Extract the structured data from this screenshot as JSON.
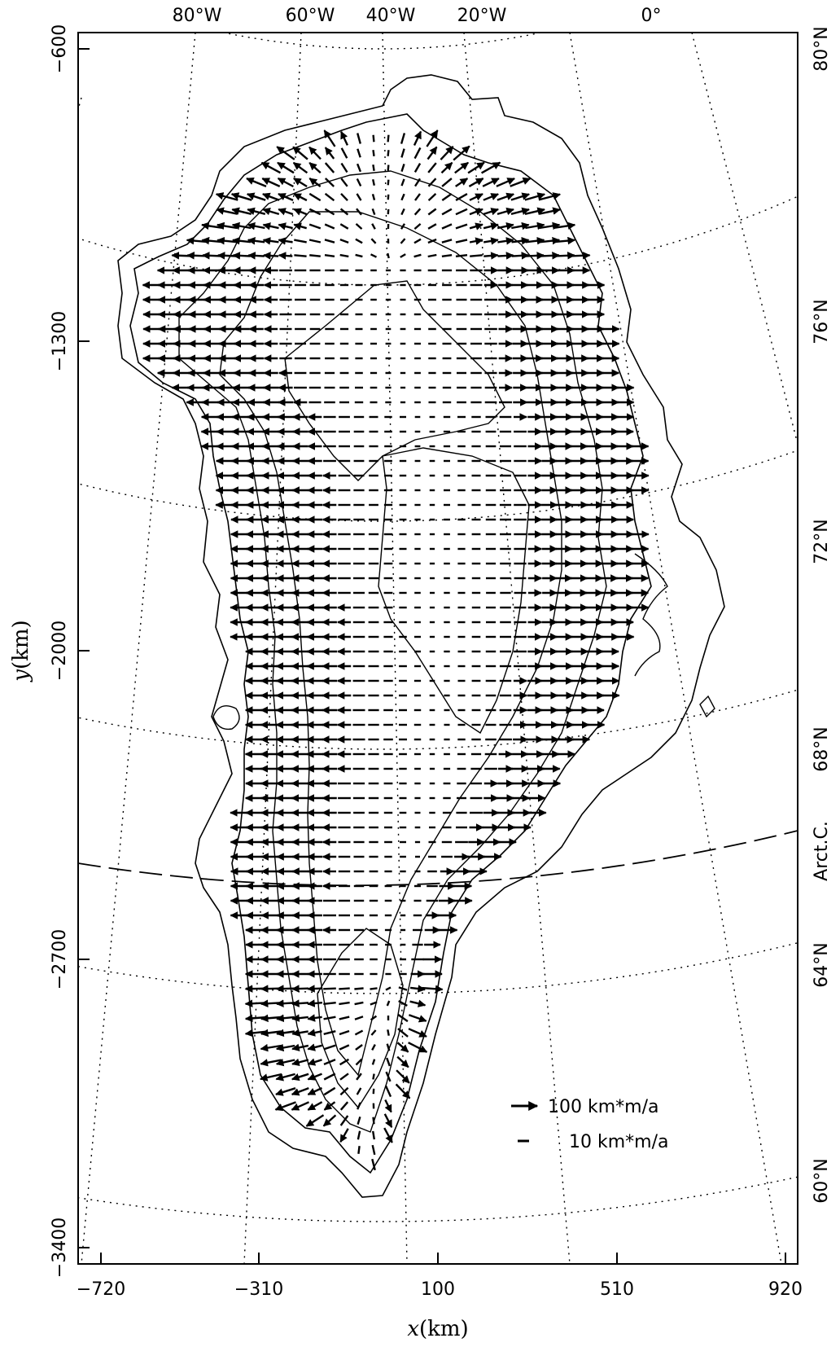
{
  "map": {
    "top_longitude_labels": [
      "80°W",
      "60°W",
      "40°W",
      "20°W",
      "0°"
    ],
    "right_latitude_labels": [
      "80°N",
      "76°N",
      "72°N",
      "68°N",
      "64°N",
      "60°N"
    ],
    "arctic_circle_label": "Arct.C.",
    "x_axis": {
      "label_var": "x",
      "label_unit": "(km)",
      "ticks": [
        "−720",
        "−310",
        "100",
        "510",
        "920"
      ],
      "range": [
        -720,
        920
      ]
    },
    "y_axis": {
      "label_var": "y",
      "label_unit": "(km)",
      "ticks": [
        "−600",
        "−1300",
        "−2000",
        "−2700",
        "−3400"
      ],
      "range": [
        -3400,
        -600
      ]
    },
    "legend": {
      "items": [
        {
          "symbol": "long-arrow",
          "label": "100 km*m/a"
        },
        {
          "symbol": "short-dash",
          "label": "10 km*m/a"
        }
      ]
    },
    "colors": {
      "line": "#000000",
      "background": "#ffffff"
    }
  }
}
